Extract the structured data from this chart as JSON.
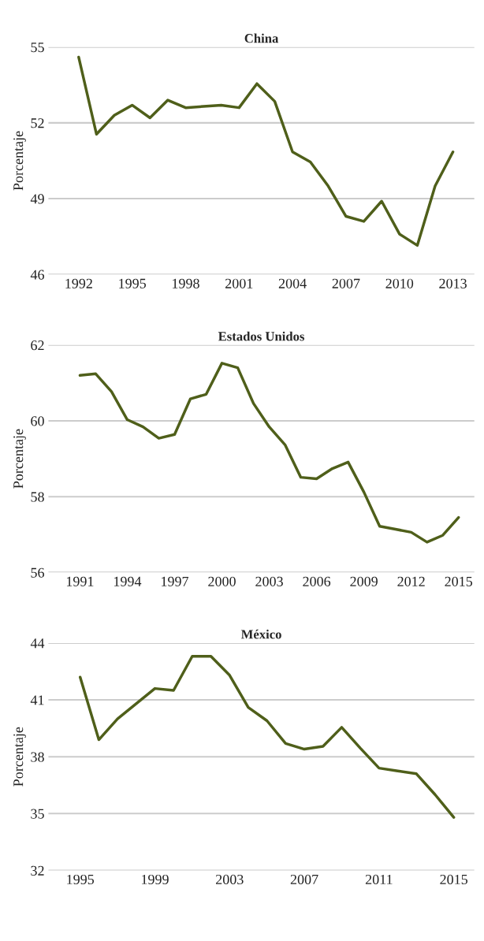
{
  "chart_data": [
    {
      "type": "line",
      "title": "China",
      "ylabel": "Porcentaje",
      "grid": "y",
      "xlim": [
        1990.3,
        2014.2
      ],
      "ylim": [
        46,
        55
      ],
      "xticks": [
        1992,
        1995,
        1998,
        2001,
        2004,
        2007,
        2010,
        2013
      ],
      "yticks": [
        46,
        49,
        52,
        55
      ],
      "x": [
        1992,
        1993,
        1994,
        1995,
        1996,
        1997,
        1998,
        1999,
        2000,
        2001,
        2002,
        2003,
        2004,
        2005,
        2006,
        2007,
        2008,
        2009,
        2010,
        2011,
        2012,
        2013
      ],
      "series": [
        {
          "color": "#4f5f1a",
          "values": [
            54.6,
            51.55,
            52.3,
            52.7,
            52.2,
            52.9,
            52.6,
            52.65,
            52.7,
            52.6,
            53.55,
            52.85,
            50.85,
            50.45,
            49.5,
            48.3,
            48.1,
            48.9,
            47.6,
            47.15,
            49.5,
            50.85
          ]
        }
      ]
    },
    {
      "type": "line",
      "title": "Estados Unidos",
      "ylabel": "Porcentaje",
      "grid": "y",
      "xlim": [
        1989.0,
        2016.0
      ],
      "ylim": [
        56,
        62
      ],
      "xticks": [
        1991,
        1994,
        1997,
        2000,
        2003,
        2006,
        2009,
        2012,
        2015
      ],
      "yticks": [
        56,
        58,
        60,
        62
      ],
      "x": [
        1991,
        1992,
        1993,
        1994,
        1995,
        1996,
        1997,
        1998,
        1999,
        2000,
        2001,
        2002,
        2003,
        2004,
        2005,
        2006,
        2007,
        2008,
        2009,
        2010,
        2011,
        2012,
        2013,
        2014,
        2015
      ],
      "series": [
        {
          "color": "#4f5f1a",
          "values": [
            61.2,
            61.24,
            60.77,
            60.03,
            59.84,
            59.54,
            59.64,
            60.58,
            60.7,
            61.52,
            61.4,
            60.46,
            59.84,
            59.37,
            58.51,
            58.47,
            58.74,
            58.91,
            58.12,
            57.22,
            57.14,
            57.06,
            56.8,
            56.98,
            57.45
          ]
        }
      ]
    },
    {
      "type": "line",
      "title": "México",
      "ylabel": "Porcentaje",
      "grid": "y",
      "xlim": [
        1993.3,
        2016.1
      ],
      "ylim": [
        32,
        44
      ],
      "xticks": [
        1995,
        1999,
        2003,
        2007,
        2011,
        2015
      ],
      "yticks": [
        32,
        35,
        38,
        41,
        44
      ],
      "x": [
        1995,
        1996,
        1997,
        1998,
        1999,
        2000,
        2001,
        2002,
        2003,
        2004,
        2005,
        2006,
        2007,
        2008,
        2009,
        2010,
        2011,
        2012,
        2013,
        2014,
        2015
      ],
      "series": [
        {
          "color": "#4f5f1a",
          "values": [
            42.2,
            38.9,
            40.0,
            40.8,
            41.6,
            41.5,
            43.3,
            43.3,
            42.3,
            40.6,
            39.9,
            38.7,
            38.4,
            38.55,
            39.55,
            38.45,
            37.4,
            37.25,
            37.1,
            36.0,
            34.8
          ]
        }
      ]
    }
  ]
}
